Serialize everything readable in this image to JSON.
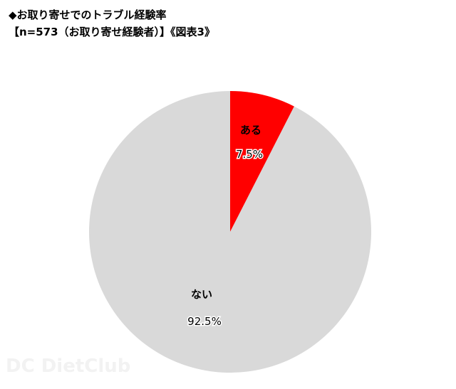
{
  "title": "◆お取り寄せでのトラブル経験率",
  "subtitle": "【n=573（お取り寄せ経験者）】《図表3》",
  "watermark": "DietClub",
  "chart_data": {
    "type": "pie",
    "title": "◆お取り寄せでのトラブル経験率",
    "subtitle": "【n=573（お取り寄せ経験者）】《図表3》",
    "slices": [
      {
        "label": "ある",
        "value": 7.5,
        "value_label": "7.5%",
        "color": "#ff0000"
      },
      {
        "label": "ない",
        "value": 92.5,
        "value_label": "92.5%",
        "color": "#d9d9d9"
      }
    ],
    "start_angle": "12 o'clock",
    "direction": "clockwise",
    "legend": "none"
  }
}
